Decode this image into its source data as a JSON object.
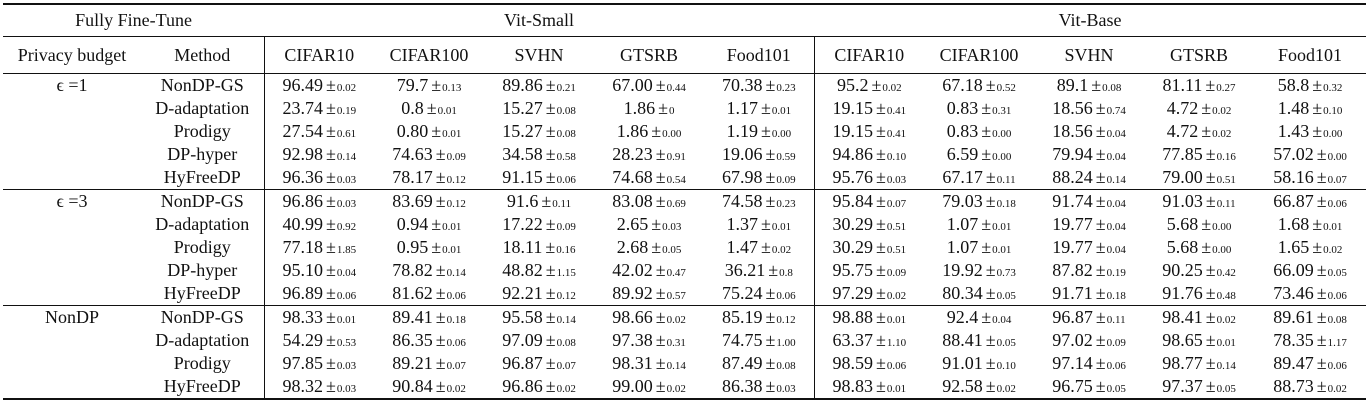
{
  "header": {
    "corner": "Fully Fine-Tune",
    "group_left": "Vit-Small",
    "group_right": "Vit-Base",
    "col_privacy": "Privacy budget",
    "col_method": "Method",
    "datasets": [
      "CIFAR10",
      "CIFAR100",
      "SVHN",
      "GTSRB",
      "Food101",
      "CIFAR10",
      "CIFAR100",
      "SVHN",
      "GTSRB",
      "Food101"
    ]
  },
  "groups": [
    {
      "budget": "ϵ =1",
      "rows": [
        {
          "method": "NonDP-GS",
          "cells": [
            [
              "96.49",
              "0.02"
            ],
            [
              "79.7",
              "0.13"
            ],
            [
              "89.86",
              "0.21"
            ],
            [
              "67.00",
              "0.44"
            ],
            [
              "70.38",
              "0.23"
            ],
            [
              "95.2",
              "0.02"
            ],
            [
              "67.18",
              "0.52"
            ],
            [
              "89.1",
              "0.08"
            ],
            [
              "81.11",
              "0.27"
            ],
            [
              "58.8",
              "0.32"
            ]
          ]
        },
        {
          "method": "D-adaptation",
          "cells": [
            [
              "23.74",
              "0.19"
            ],
            [
              "0.8",
              "0.01"
            ],
            [
              "15.27",
              "0.08"
            ],
            [
              "1.86",
              "0"
            ],
            [
              "1.17",
              "0.01"
            ],
            [
              "19.15",
              "0.41"
            ],
            [
              "0.83",
              "0.31"
            ],
            [
              "18.56",
              "0.74"
            ],
            [
              "4.72",
              "0.02"
            ],
            [
              "1.48",
              "0.10"
            ]
          ]
        },
        {
          "method": "Prodigy",
          "cells": [
            [
              "27.54",
              "0.61"
            ],
            [
              "0.80",
              "0.01"
            ],
            [
              "15.27",
              "0.08"
            ],
            [
              "1.86",
              "0.00"
            ],
            [
              "1.19",
              "0.00"
            ],
            [
              "19.15",
              "0.41"
            ],
            [
              "0.83",
              "0.00"
            ],
            [
              "18.56",
              "0.04"
            ],
            [
              "4.72",
              "0.02"
            ],
            [
              "1.43",
              "0.00"
            ]
          ]
        },
        {
          "method": "DP-hyper",
          "cells": [
            [
              "92.98",
              "0.14"
            ],
            [
              "74.63",
              "0.09"
            ],
            [
              "34.58",
              "0.58"
            ],
            [
              "28.23",
              "0.91"
            ],
            [
              "19.06",
              "0.59"
            ],
            [
              "94.86",
              "0.10"
            ],
            [
              "6.59",
              "0.00"
            ],
            [
              "79.94",
              "0.04"
            ],
            [
              "77.85",
              "0.16"
            ],
            [
              "57.02",
              "0.00"
            ]
          ]
        },
        {
          "method": "HyFreeDP",
          "cells": [
            [
              "96.36",
              "0.03"
            ],
            [
              "78.17",
              "0.12"
            ],
            [
              "91.15",
              "0.06"
            ],
            [
              "74.68",
              "0.54"
            ],
            [
              "67.98",
              "0.09"
            ],
            [
              "95.76",
              "0.03"
            ],
            [
              "67.17",
              "0.11"
            ],
            [
              "88.24",
              "0.14"
            ],
            [
              "79.00",
              "0.51"
            ],
            [
              "58.16",
              "0.07"
            ]
          ]
        }
      ]
    },
    {
      "budget": "ϵ =3",
      "rows": [
        {
          "method": "NonDP-GS",
          "cells": [
            [
              "96.86",
              "0.03"
            ],
            [
              "83.69",
              "0.12"
            ],
            [
              "91.6",
              "0.11"
            ],
            [
              "83.08",
              "0.69"
            ],
            [
              "74.58",
              "0.23"
            ],
            [
              "95.84",
              "0.07"
            ],
            [
              "79.03",
              "0.18"
            ],
            [
              "91.74",
              "0.04"
            ],
            [
              "91.03",
              "0.11"
            ],
            [
              "66.87",
              "0.06"
            ]
          ]
        },
        {
          "method": "D-adaptation",
          "cells": [
            [
              "40.99",
              "0.92"
            ],
            [
              "0.94",
              "0.01"
            ],
            [
              "17.22",
              "0.09"
            ],
            [
              "2.65",
              "0.03"
            ],
            [
              "1.37",
              "0.01"
            ],
            [
              "30.29",
              "0.51"
            ],
            [
              "1.07",
              "0.01"
            ],
            [
              "19.77",
              "0.04"
            ],
            [
              "5.68",
              "0.00"
            ],
            [
              "1.68",
              "0.01"
            ]
          ]
        },
        {
          "method": "Prodigy",
          "cells": [
            [
              "77.18",
              "1.85"
            ],
            [
              "0.95",
              "0.01"
            ],
            [
              "18.11",
              "0.16"
            ],
            [
              "2.68",
              "0.05"
            ],
            [
              "1.47",
              "0.02"
            ],
            [
              "30.29",
              "0.51"
            ],
            [
              "1.07",
              "0.01"
            ],
            [
              "19.77",
              "0.04"
            ],
            [
              "5.68",
              "0.00"
            ],
            [
              "1.65",
              "0.02"
            ]
          ]
        },
        {
          "method": "DP-hyper",
          "cells": [
            [
              "95.10",
              "0.04"
            ],
            [
              "78.82",
              "0.14"
            ],
            [
              "48.82",
              "1.15"
            ],
            [
              "42.02",
              "0.47"
            ],
            [
              "36.21",
              "0.8"
            ],
            [
              "95.75",
              "0.09"
            ],
            [
              "19.92",
              "0.73"
            ],
            [
              "87.82",
              "0.19"
            ],
            [
              "90.25",
              "0.42"
            ],
            [
              "66.09",
              "0.05"
            ]
          ]
        },
        {
          "method": "HyFreeDP",
          "cells": [
            [
              "96.89",
              "0.06"
            ],
            [
              "81.62",
              "0.06"
            ],
            [
              "92.21",
              "0.12"
            ],
            [
              "89.92",
              "0.57"
            ],
            [
              "75.24",
              "0.06"
            ],
            [
              "97.29",
              "0.02"
            ],
            [
              "80.34",
              "0.05"
            ],
            [
              "91.71",
              "0.18"
            ],
            [
              "91.76",
              "0.48"
            ],
            [
              "73.46",
              "0.06"
            ]
          ]
        }
      ]
    },
    {
      "budget": "NonDP",
      "rows": [
        {
          "method": "NonDP-GS",
          "cells": [
            [
              "98.33",
              "0.01"
            ],
            [
              "89.41",
              "0.18"
            ],
            [
              "95.58",
              "0.14"
            ],
            [
              "98.66",
              "0.02"
            ],
            [
              "85.19",
              "0.12"
            ],
            [
              "98.88",
              "0.01"
            ],
            [
              "92.4",
              "0.04"
            ],
            [
              "96.87",
              "0.11"
            ],
            [
              "98.41",
              "0.02"
            ],
            [
              "89.61",
              "0.08"
            ]
          ]
        },
        {
          "method": "D-adaptation",
          "cells": [
            [
              "54.29",
              "0.53"
            ],
            [
              "86.35",
              "0.06"
            ],
            [
              "97.09",
              "0.08"
            ],
            [
              "97.38",
              "0.31"
            ],
            [
              "74.75",
              "1.00"
            ],
            [
              "63.37",
              "1.10"
            ],
            [
              "88.41",
              "0.05"
            ],
            [
              "97.02",
              "0.09"
            ],
            [
              "98.65",
              "0.01"
            ],
            [
              "78.35",
              "1.17"
            ]
          ]
        },
        {
          "method": "Prodigy",
          "cells": [
            [
              "97.85",
              "0.03"
            ],
            [
              "89.21",
              "0.07"
            ],
            [
              "96.87",
              "0.07"
            ],
            [
              "98.31",
              "0.14"
            ],
            [
              "87.49",
              "0.08"
            ],
            [
              "98.59",
              "0.06"
            ],
            [
              "91.01",
              "0.10"
            ],
            [
              "97.14",
              "0.06"
            ],
            [
              "98.77",
              "0.14"
            ],
            [
              "89.47",
              "0.06"
            ]
          ]
        },
        {
          "method": "HyFreeDP",
          "cells": [
            [
              "98.32",
              "0.03"
            ],
            [
              "90.84",
              "0.02"
            ],
            [
              "96.86",
              "0.02"
            ],
            [
              "99.00",
              "0.02"
            ],
            [
              "86.38",
              "0.03"
            ],
            [
              "98.83",
              "0.01"
            ],
            [
              "92.58",
              "0.02"
            ],
            [
              "96.75",
              "0.05"
            ],
            [
              "97.37",
              "0.05"
            ],
            [
              "88.73",
              "0.02"
            ]
          ]
        }
      ]
    }
  ]
}
